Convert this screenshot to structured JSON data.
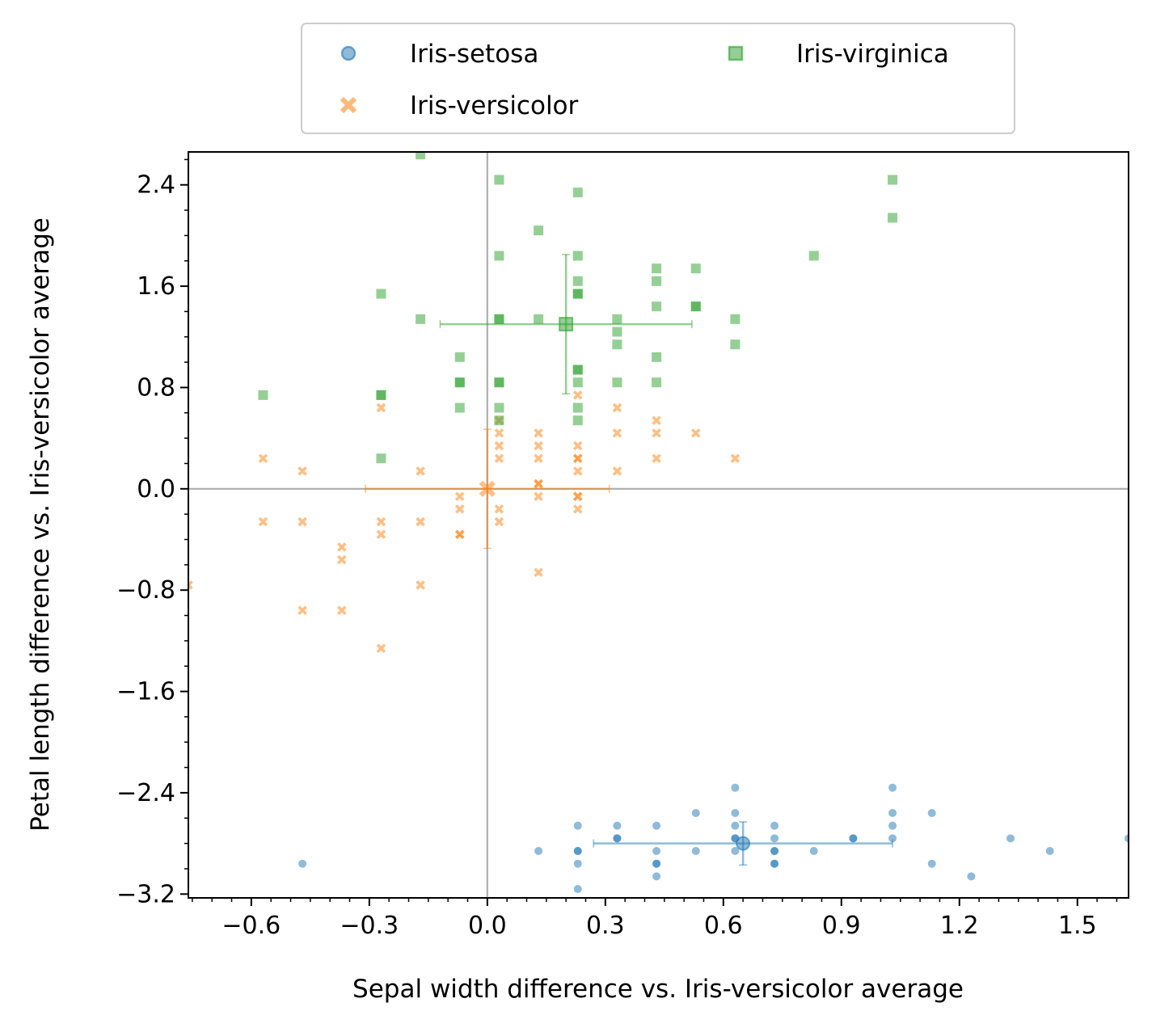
{
  "chart_data": {
    "type": "scatter",
    "title": "",
    "xlabel": "Sepal width difference vs. Iris-versicolor average",
    "ylabel": "Petal length difference vs. Iris-versicolor average",
    "xlim": [
      -0.76,
      1.63
    ],
    "ylim": [
      -3.23,
      2.66
    ],
    "x_ticks": [
      -0.6,
      -0.3,
      0.0,
      0.3,
      0.6,
      0.9,
      1.2,
      1.5
    ],
    "x_tick_labels": [
      "−0.6",
      "−0.3",
      "0.0",
      "0.3",
      "0.6",
      "0.9",
      "1.2",
      "1.5"
    ],
    "y_ticks": [
      -3.2,
      -2.4,
      -1.6,
      -0.8,
      0.0,
      0.8,
      1.6,
      2.4
    ],
    "y_tick_labels": [
      "−3.2",
      "−2.4",
      "−1.6",
      "−0.8",
      "0.0",
      "0.8",
      "1.6",
      "2.4"
    ],
    "reference_lines": {
      "x": 0.0,
      "y": 0.0,
      "color": "#b0b0b0"
    },
    "grid": false,
    "legend": {
      "position": "top-center, above plot",
      "columns": 2
    },
    "series": [
      {
        "name": "Iris-setosa",
        "marker": "circle",
        "color": "#1f77b4",
        "mean": {
          "x": 0.65,
          "y": -2.8,
          "xerr": 0.38,
          "yerr": 0.17
        },
        "points": [
          [
            0.23,
            -2.66
          ],
          [
            0.33,
            -2.66
          ],
          [
            0.43,
            -2.66
          ],
          [
            0.63,
            -2.66
          ],
          [
            0.73,
            -2.66
          ],
          [
            1.03,
            -2.66
          ],
          [
            0.53,
            -2.56
          ],
          [
            0.63,
            -2.56
          ],
          [
            1.03,
            -2.56
          ],
          [
            1.13,
            -2.56
          ],
          [
            0.63,
            -2.36
          ],
          [
            1.03,
            -2.36
          ],
          [
            0.33,
            -2.76
          ],
          [
            0.33,
            -2.76
          ],
          [
            0.63,
            -2.76
          ],
          [
            0.63,
            -2.76
          ],
          [
            0.73,
            -2.76
          ],
          [
            0.93,
            -2.76
          ],
          [
            0.93,
            -2.76
          ],
          [
            1.03,
            -2.76
          ],
          [
            1.33,
            -2.76
          ],
          [
            1.63,
            -2.76
          ],
          [
            0.13,
            -2.86
          ],
          [
            0.23,
            -2.86
          ],
          [
            0.23,
            -2.86
          ],
          [
            0.43,
            -2.86
          ],
          [
            0.53,
            -2.86
          ],
          [
            0.63,
            -2.86
          ],
          [
            0.73,
            -2.86
          ],
          [
            0.73,
            -2.86
          ],
          [
            0.83,
            -2.86
          ],
          [
            1.43,
            -2.86
          ],
          [
            -0.47,
            -2.96
          ],
          [
            0.23,
            -2.96
          ],
          [
            0.43,
            -2.96
          ],
          [
            0.43,
            -2.96
          ],
          [
            0.73,
            -2.96
          ],
          [
            0.73,
            -2.96
          ],
          [
            1.13,
            -2.96
          ],
          [
            0.43,
            -3.06
          ],
          [
            1.23,
            -3.06
          ],
          [
            0.23,
            -3.16
          ],
          [
            0.83,
            -3.26
          ]
        ]
      },
      {
        "name": "Iris-versicolor",
        "marker": "x",
        "color": "#ff7f0e",
        "mean": {
          "x": 0.0,
          "y": 0.0,
          "xerr": 0.31,
          "yerr": 0.47
        },
        "points": [
          [
            0.23,
            0.74
          ],
          [
            -0.27,
            0.64
          ],
          [
            0.33,
            0.64
          ],
          [
            0.43,
            0.54
          ],
          [
            0.03,
            0.54
          ],
          [
            0.03,
            0.44
          ],
          [
            0.13,
            0.44
          ],
          [
            0.33,
            0.44
          ],
          [
            0.43,
            0.44
          ],
          [
            0.53,
            0.44
          ],
          [
            0.03,
            0.34
          ],
          [
            0.13,
            0.34
          ],
          [
            0.23,
            0.34
          ],
          [
            -0.57,
            0.24
          ],
          [
            0.03,
            0.24
          ],
          [
            0.13,
            0.24
          ],
          [
            0.23,
            0.24
          ],
          [
            0.23,
            0.24
          ],
          [
            0.43,
            0.24
          ],
          [
            0.63,
            0.24
          ],
          [
            -0.47,
            0.14
          ],
          [
            -0.17,
            0.14
          ],
          [
            0.23,
            0.14
          ],
          [
            0.33,
            0.14
          ],
          [
            0.13,
            0.04
          ],
          [
            0.13,
            0.04
          ],
          [
            0.13,
            -0.06
          ],
          [
            0.23,
            -0.06
          ],
          [
            0.23,
            -0.06
          ],
          [
            -0.07,
            -0.06
          ],
          [
            -0.07,
            -0.16
          ],
          [
            0.03,
            -0.16
          ],
          [
            0.23,
            -0.16
          ],
          [
            -0.57,
            -0.26
          ],
          [
            -0.47,
            -0.26
          ],
          [
            -0.27,
            -0.26
          ],
          [
            -0.17,
            -0.26
          ],
          [
            0.03,
            -0.26
          ],
          [
            -0.27,
            -0.36
          ],
          [
            -0.07,
            -0.36
          ],
          [
            -0.07,
            -0.36
          ],
          [
            -0.37,
            -0.46
          ],
          [
            -0.37,
            -0.56
          ],
          [
            0.13,
            -0.66
          ],
          [
            -0.17,
            -0.76
          ],
          [
            -0.76,
            -0.76
          ],
          [
            -0.47,
            -0.96
          ],
          [
            -0.37,
            -0.96
          ],
          [
            -0.27,
            -1.26
          ]
        ]
      },
      {
        "name": "Iris-virginica",
        "marker": "square",
        "color": "#2ca02c",
        "mean": {
          "x": 0.2,
          "y": 1.3,
          "xerr": 0.32,
          "yerr": 0.55
        },
        "points": [
          [
            -0.17,
            2.64
          ],
          [
            0.03,
            2.44
          ],
          [
            1.03,
            2.44
          ],
          [
            0.23,
            2.34
          ],
          [
            1.03,
            2.14
          ],
          [
            0.13,
            2.04
          ],
          [
            0.03,
            1.84
          ],
          [
            0.23,
            1.84
          ],
          [
            0.83,
            1.84
          ],
          [
            0.43,
            1.74
          ],
          [
            0.53,
            1.74
          ],
          [
            0.23,
            1.64
          ],
          [
            0.43,
            1.64
          ],
          [
            -0.27,
            1.54
          ],
          [
            0.23,
            1.54
          ],
          [
            0.23,
            1.54
          ],
          [
            0.43,
            1.44
          ],
          [
            0.53,
            1.44
          ],
          [
            0.53,
            1.44
          ],
          [
            -0.17,
            1.34
          ],
          [
            0.03,
            1.34
          ],
          [
            0.03,
            1.34
          ],
          [
            0.13,
            1.34
          ],
          [
            0.33,
            1.34
          ],
          [
            0.63,
            1.34
          ],
          [
            0.33,
            1.24
          ],
          [
            0.33,
            1.14
          ],
          [
            0.63,
            1.14
          ],
          [
            -0.07,
            1.04
          ],
          [
            0.43,
            1.04
          ],
          [
            0.23,
            0.94
          ],
          [
            0.23,
            0.94
          ],
          [
            -0.07,
            0.84
          ],
          [
            -0.07,
            0.84
          ],
          [
            0.03,
            0.84
          ],
          [
            0.03,
            0.84
          ],
          [
            0.23,
            0.84
          ],
          [
            0.33,
            0.84
          ],
          [
            0.43,
            0.84
          ],
          [
            -0.57,
            0.74
          ],
          [
            -0.27,
            0.74
          ],
          [
            -0.27,
            0.74
          ],
          [
            -0.07,
            0.64
          ],
          [
            0.03,
            0.64
          ],
          [
            0.23,
            0.64
          ],
          [
            0.03,
            0.54
          ],
          [
            0.23,
            0.54
          ],
          [
            -0.27,
            0.24
          ]
        ]
      }
    ]
  }
}
